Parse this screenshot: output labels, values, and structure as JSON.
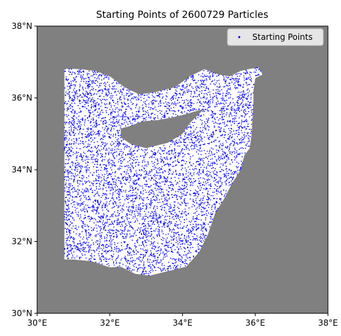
{
  "chart_data": {
    "type": "scatter",
    "title": "Starting Points of 2600729 Particles",
    "xlabel": "",
    "ylabel": "",
    "xlim": [
      30,
      38
    ],
    "ylim": [
      30,
      38
    ],
    "x_ticks": [
      30,
      32,
      34,
      36,
      38
    ],
    "y_ticks": [
      30,
      32,
      34,
      36,
      38
    ],
    "x_tick_labels": [
      "30°E",
      "32°E",
      "34°E",
      "36°E",
      "38°E"
    ],
    "y_tick_labels": [
      "30°N",
      "32°N",
      "34°N",
      "36°N",
      "38°N"
    ],
    "grid": false,
    "legend": {
      "location": "top-right",
      "entries": [
        "Starting Points"
      ]
    },
    "series": [
      {
        "name": "Starting Points",
        "color": "#0000ff",
        "marker": "point",
        "count": 2600729
      }
    ],
    "colors": {
      "land": "#808080",
      "sea": "#ffffff",
      "points": "#0000ff"
    },
    "sea_region_outline_lonlat": [
      [
        30.75,
        36.82
      ],
      [
        31.2,
        36.8
      ],
      [
        31.6,
        36.75
      ],
      [
        32.0,
        36.6
      ],
      [
        32.4,
        36.3
      ],
      [
        32.8,
        36.1
      ],
      [
        33.2,
        36.15
      ],
      [
        33.8,
        36.3
      ],
      [
        34.2,
        36.6
      ],
      [
        34.6,
        36.8
      ],
      [
        35.0,
        36.65
      ],
      [
        35.3,
        36.6
      ],
      [
        35.6,
        36.75
      ],
      [
        35.8,
        36.8
      ],
      [
        36.1,
        36.85
      ],
      [
        36.2,
        36.65
      ],
      [
        36.0,
        36.55
      ],
      [
        35.95,
        36.2
      ],
      [
        35.95,
        35.9
      ],
      [
        35.93,
        35.5
      ],
      [
        35.9,
        35.0
      ],
      [
        35.85,
        34.6
      ],
      [
        35.7,
        34.4
      ],
      [
        35.6,
        34.0
      ],
      [
        35.35,
        33.6
      ],
      [
        35.15,
        33.2
      ],
      [
        34.9,
        32.8
      ],
      [
        34.7,
        32.2
      ],
      [
        34.45,
        31.7
      ],
      [
        34.1,
        31.3
      ],
      [
        33.5,
        31.15
      ],
      [
        33.1,
        31.05
      ],
      [
        32.7,
        31.1
      ],
      [
        32.3,
        31.3
      ],
      [
        32.0,
        31.28
      ],
      [
        31.5,
        31.45
      ],
      [
        31.0,
        31.5
      ],
      [
        30.75,
        31.5
      ]
    ],
    "cyprus_outline_lonlat": [
      [
        32.3,
        35.15
      ],
      [
        32.5,
        35.2
      ],
      [
        32.9,
        35.35
      ],
      [
        33.3,
        35.38
      ],
      [
        33.7,
        35.45
      ],
      [
        34.1,
        35.55
      ],
      [
        34.6,
        35.7
      ],
      [
        34.2,
        35.3
      ],
      [
        34.0,
        35.0
      ],
      [
        33.6,
        34.75
      ],
      [
        33.0,
        34.6
      ],
      [
        32.6,
        34.7
      ],
      [
        32.3,
        34.9
      ]
    ]
  }
}
